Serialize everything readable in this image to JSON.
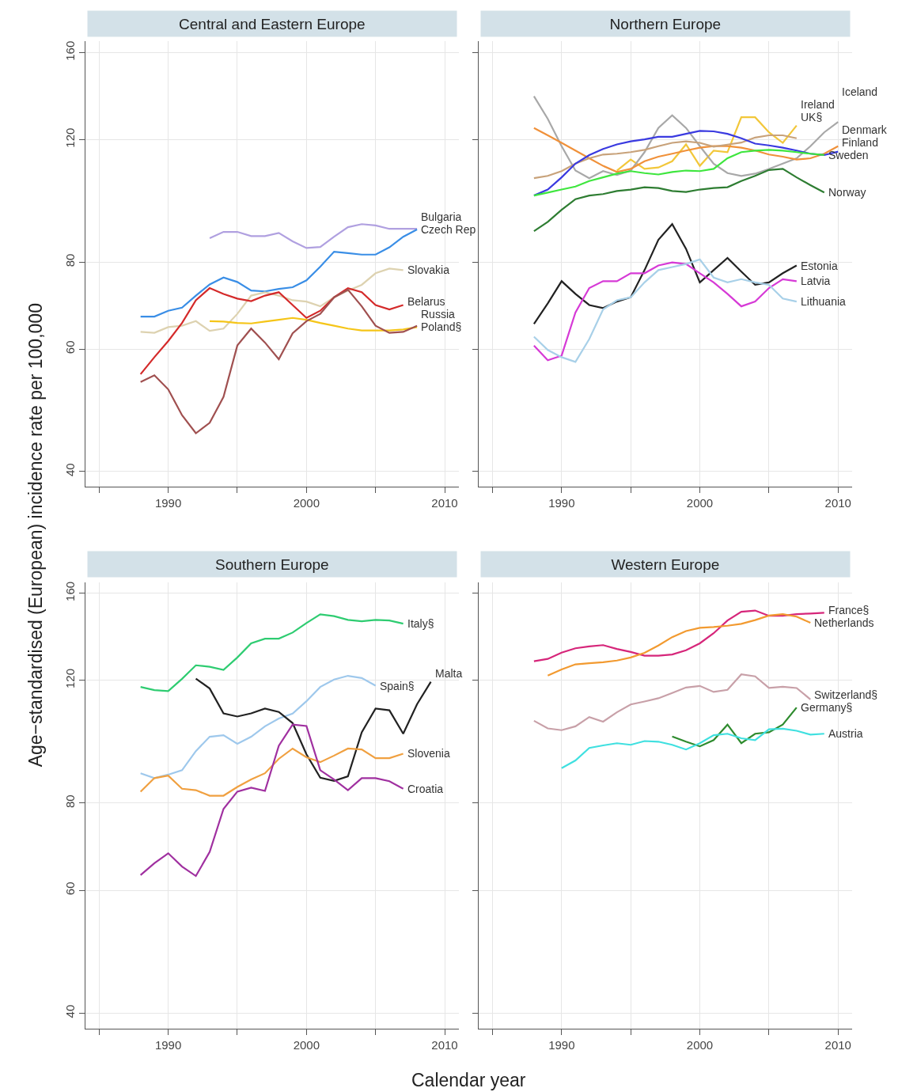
{
  "chart_data": [
    {
      "type": "line",
      "title": "Central and Eastern Europe",
      "ylabel": "Age−standardised (European) incidence rate per 100,000",
      "log": true,
      "grid": true,
      "xlim": [
        1984,
        2011
      ],
      "ylim": [
        38,
        166
      ],
      "xticks": [
        {
          "value": 1985,
          "label": null
        },
        1990,
        {
          "value": 1995,
          "label": null
        },
        2000,
        {
          "value": 2005,
          "label": null
        },
        2010
      ],
      "yticks": [
        40,
        60,
        80,
        120,
        160
      ],
      "series": [
        {
          "name": "Bulgaria",
          "color": "#b0a0e0",
          "x": [
            1993,
            1994,
            1995,
            1996,
            1997,
            1998,
            1999,
            2000,
            2001,
            2002,
            2003,
            2004,
            2005,
            2006,
            2007,
            2008
          ],
          "values": [
            86.6,
            88.4,
            88.4,
            87.2,
            87.2,
            88.1,
            85.7,
            83.8,
            84.1,
            87.0,
            89.8,
            90.7,
            90.3,
            89.3,
            89.3,
            89.3
          ]
        },
        {
          "name": "Czech Rep",
          "color": "#3a8ee6",
          "x": [
            1988,
            1989,
            1990,
            1991,
            1992,
            1993,
            1994,
            1995,
            1996,
            1997,
            1998,
            1999,
            2000,
            2001,
            2002,
            2003,
            2004,
            2005,
            2006,
            2007,
            2008
          ],
          "values": [
            66.8,
            66.8,
            68.1,
            68.8,
            71.6,
            74.3,
            76.0,
            74.9,
            72.8,
            72.6,
            73.2,
            73.6,
            75.3,
            78.8,
            82.8,
            82.4,
            82.0,
            82.0,
            84.0,
            87.0,
            89.1
          ]
        },
        {
          "name": "Slovakia",
          "color": "#ddd2b0",
          "x": [
            1988,
            1989,
            1990,
            1991,
            1992,
            1993,
            1994,
            1995,
            1996,
            1997,
            1998,
            1999,
            2000,
            2001,
            2002,
            2003,
            2004,
            2005,
            2006,
            2007
          ],
          "values": [
            63.5,
            63.3,
            64.5,
            64.8,
            65.8,
            63.7,
            64.2,
            67.4,
            71.6,
            72.4,
            71.6,
            70.5,
            70.2,
            69.1,
            71.2,
            72.8,
            74.2,
            77.1,
            78.3,
            77.9
          ]
        },
        {
          "name": "Belarus",
          "color": "#d42a2a",
          "x": [
            1988,
            1989,
            1990,
            1991,
            1992,
            1993,
            1994,
            1995,
            1996,
            1997,
            1998,
            1999,
            2000,
            2001,
            2002,
            2003,
            2004,
            2005,
            2006,
            2007
          ],
          "values": [
            55.2,
            58.4,
            61.6,
            65.4,
            70.5,
            73.4,
            72.0,
            70.9,
            70.3,
            71.6,
            72.4,
            69.4,
            66.5,
            68.1,
            71.2,
            73.4,
            72.4,
            69.4,
            68.4,
            69.4
          ]
        },
        {
          "name": "Poland§",
          "color": "#f5c518",
          "x": [
            1993,
            1994,
            1995,
            1996,
            1997,
            1998,
            1999,
            2000,
            2001,
            2002,
            2003,
            2004,
            2005,
            2006,
            2007,
            2008
          ],
          "values": [
            65.8,
            65.7,
            65.4,
            65.3,
            65.7,
            66.1,
            66.5,
            66.1,
            65.4,
            64.8,
            64.2,
            63.8,
            63.8,
            63.8,
            64.0,
            64.5
          ]
        },
        {
          "name": "Russia",
          "color": "#a05050",
          "x": [
            1988,
            1989,
            1990,
            1991,
            1992,
            1993,
            1994,
            1995,
            1996,
            1997,
            1998,
            1999,
            2000,
            2001,
            2002,
            2003,
            2004,
            2005,
            2006,
            2007,
            2008
          ],
          "values": [
            53.8,
            55.0,
            52.5,
            48.2,
            45.4,
            47.0,
            51.2,
            60.7,
            64.2,
            61.3,
            58.0,
            63.2,
            65.8,
            67.4,
            71.2,
            73.0,
            69.1,
            64.8,
            63.3,
            63.5,
            64.8
          ]
        }
      ]
    },
    {
      "type": "line",
      "title": "Northern Europe",
      "log": true,
      "grid": true,
      "tick_labels": "x",
      "xlim": [
        1984,
        2011
      ],
      "ylim": [
        38,
        166
      ],
      "xticks": [
        {
          "value": 1985,
          "label": null
        },
        1990,
        {
          "value": 1995,
          "label": null
        },
        2000,
        {
          "value": 2005,
          "label": null
        },
        2010
      ],
      "yticks": [
        40,
        60,
        80,
        120,
        160
      ],
      "series": [
        {
          "name": "Ireland",
          "color": "#f2c73a",
          "x": [
            1994,
            1995,
            1996,
            1997,
            1998,
            1999,
            2000,
            2001,
            2002,
            2003,
            2004,
            2005,
            2006,
            2007
          ],
          "values": [
            108.3,
            112.3,
            108.9,
            109.4,
            111.7,
            118.1,
            110.0,
            115.7,
            115.1,
            129.2,
            129.2,
            122.9,
            118.7,
            125.7
          ]
        },
        {
          "name": "Iceland",
          "color": "#a8a8a8",
          "x": [
            1988,
            1989,
            1990,
            1991,
            1992,
            1993,
            1994,
            1995,
            1996,
            1997,
            1998,
            1999,
            2000,
            2001,
            2002,
            2003,
            2004,
            2005,
            2006,
            2007,
            2008,
            2009,
            2010
          ],
          "values": [
            138.5,
            128.5,
            117.4,
            108.3,
            105.6,
            108.1,
            106.7,
            108.3,
            115.1,
            124.7,
            130.0,
            124.7,
            117.4,
            110.8,
            107.4,
            106.4,
            107.2,
            108.9,
            110.8,
            112.8,
            117.4,
            122.9,
            127.2
          ]
        },
        {
          "name": "Denmark",
          "color": "#f0913a",
          "x": [
            1988,
            1989,
            1990,
            1991,
            1992,
            1993,
            1994,
            1995,
            1996,
            1997,
            1998,
            1999,
            2000,
            2001,
            2002,
            2003,
            2004,
            2005,
            2006,
            2007,
            2008,
            2009,
            2010
          ],
          "values": [
            124.7,
            121.7,
            118.7,
            115.7,
            112.8,
            110.0,
            107.8,
            108.9,
            111.7,
            113.4,
            114.5,
            115.7,
            116.8,
            117.4,
            117.4,
            116.8,
            115.7,
            114.2,
            113.4,
            112.3,
            112.8,
            114.5,
            117.4
          ]
        },
        {
          "name": "UK§",
          "color": "#c8a27a",
          "x": [
            1988,
            1989,
            1990,
            1991,
            1992,
            1993,
            1994,
            1995,
            1996,
            1997,
            1998,
            1999,
            2000,
            2001,
            2002,
            2003,
            2004,
            2005,
            2006,
            2007
          ],
          "values": [
            105.6,
            106.4,
            108.1,
            110.8,
            112.8,
            114.2,
            114.5,
            115.1,
            116.0,
            117.4,
            118.7,
            119.3,
            118.7,
            117.2,
            118.0,
            118.8,
            120.8,
            121.7,
            121.7,
            120.5
          ]
        },
        {
          "name": "Finland",
          "color": "#3a3ae0",
          "x": [
            1988,
            1989,
            1990,
            1991,
            1992,
            1993,
            1994,
            1995,
            1996,
            1997,
            1998,
            1999,
            2000,
            2001,
            2002,
            2003,
            2004,
            2005,
            2006,
            2007,
            2008,
            2009,
            2010
          ],
          "values": [
            99.7,
            101.7,
            105.9,
            110.8,
            114.0,
            116.3,
            118.1,
            119.3,
            120.1,
            121.1,
            121.1,
            122.3,
            123.5,
            123.3,
            122.3,
            120.5,
            118.4,
            117.7,
            116.8,
            115.7,
            114.5,
            114.0,
            115.3
          ]
        },
        {
          "name": "Sweden",
          "color": "#3ee63e",
          "x": [
            1988,
            1989,
            1990,
            1991,
            1992,
            1993,
            1994,
            1995,
            1996,
            1997,
            1998,
            1999,
            2000,
            2001,
            2002,
            2003,
            2004,
            2005,
            2006,
            2007,
            2008,
            2009
          ],
          "values": [
            99.7,
            100.7,
            101.7,
            102.7,
            104.6,
            105.9,
            107.2,
            108.1,
            107.4,
            106.9,
            107.8,
            108.3,
            108.1,
            108.9,
            112.8,
            115.1,
            115.7,
            116.0,
            115.7,
            115.1,
            114.5,
            114.0
          ]
        },
        {
          "name": "Norway",
          "color": "#2e7d32",
          "x": [
            1988,
            1989,
            1990,
            1991,
            1992,
            1993,
            1994,
            1995,
            1996,
            1997,
            1998,
            1999,
            2000,
            2001,
            2002,
            2003,
            2004,
            2005,
            2006,
            2007,
            2008,
            2009
          ],
          "values": [
            88.6,
            91.4,
            95.1,
            98.5,
            99.7,
            100.2,
            101.2,
            101.7,
            102.5,
            102.2,
            101.2,
            100.9,
            101.7,
            102.2,
            102.5,
            104.6,
            106.4,
            108.5,
            108.9,
            105.9,
            103.2,
            100.7
          ]
        },
        {
          "name": "Estonia",
          "color": "#222222",
          "x": [
            1988,
            1989,
            1990,
            1991,
            1992,
            1993,
            1994,
            1995,
            1996,
            1997,
            1998,
            1999,
            2000,
            2001,
            2002,
            2003,
            2004,
            2005,
            2006,
            2007
          ],
          "values": [
            65.2,
            69.8,
            75.1,
            72.0,
            69.4,
            68.7,
            70.2,
            71.2,
            77.9,
            86.1,
            90.7,
            83.6,
            74.8,
            77.9,
            81.1,
            77.5,
            74.2,
            74.8,
            77.1,
            79.1
          ]
        },
        {
          "name": "Latvia",
          "color": "#d63ad6",
          "x": [
            1988,
            1989,
            1990,
            1991,
            1992,
            1993,
            1994,
            1995,
            1996,
            1997,
            1998,
            1999,
            2000,
            2001,
            2002,
            2003,
            2004,
            2005,
            2006,
            2007
          ],
          "values": [
            60.7,
            57.8,
            58.7,
            67.7,
            73.4,
            75.1,
            75.1,
            77.1,
            77.1,
            79.1,
            79.9,
            79.5,
            77.1,
            74.8,
            72.0,
            69.1,
            70.2,
            73.4,
            75.6,
            75.1
          ]
        },
        {
          "name": "Lithuania",
          "color": "#a8d0e8",
          "x": [
            1988,
            1989,
            1990,
            1991,
            1992,
            1993,
            1994,
            1995,
            1996,
            1997,
            1998,
            1999,
            2000,
            2001,
            2002,
            2003,
            2004,
            2005,
            2006,
            2007
          ],
          "values": [
            62.5,
            59.8,
            58.4,
            57.5,
            62.0,
            68.4,
            70.5,
            71.2,
            74.8,
            77.9,
            78.7,
            79.5,
            80.7,
            76.0,
            74.8,
            75.6,
            74.8,
            74.2,
            70.9,
            70.2
          ]
        }
      ]
    },
    {
      "type": "line",
      "title": "Southern Europe",
      "xlabel": "Calendar year",
      "log": true,
      "grid": true,
      "xlim": [
        1984,
        2011
      ],
      "ylim": [
        38,
        166
      ],
      "xticks": [
        {
          "value": 1985,
          "label": null
        },
        1990,
        {
          "value": 1995,
          "label": null
        },
        2000,
        {
          "value": 2005,
          "label": null
        },
        2010
      ],
      "yticks": [
        40,
        60,
        80,
        120,
        160
      ],
      "series": [
        {
          "name": "Italy§",
          "color": "#2ecc71",
          "x": [
            1988,
            1989,
            1990,
            1991,
            1992,
            1993,
            1994,
            1995,
            1996,
            1997,
            1998,
            1999,
            2000,
            2001,
            2002,
            2003,
            2004,
            2005,
            2006,
            2007
          ],
          "values": [
            117.4,
            116.2,
            115.8,
            120.6,
            126.1,
            125.5,
            124.2,
            129.4,
            135.6,
            137.7,
            137.7,
            140.5,
            145.0,
            149.2,
            148.3,
            146.5,
            145.8,
            146.5,
            146.2,
            144.7
          ]
        },
        {
          "name": "Spain§",
          "color": "#9ec8ec",
          "x": [
            1988,
            1989,
            1990,
            1991,
            1992,
            1993,
            1994,
            1995,
            1996,
            1997,
            1998,
            1999,
            2000,
            2001,
            2002,
            2003,
            2004,
            2005
          ],
          "values": [
            88.3,
            86.9,
            87.9,
            89.2,
            95.0,
            99.6,
            100.1,
            97.3,
            99.6,
            103.1,
            105.8,
            107.5,
            112.0,
            117.4,
            120.3,
            121.8,
            120.9,
            117.9
          ]
        },
        {
          "name": "Malta",
          "color": "#222222",
          "x": [
            1992,
            1993,
            1994,
            1995,
            1996,
            1997,
            1998,
            1999,
            2000,
            2001,
            2002,
            2003,
            2004,
            2005,
            2006,
            2007,
            2008,
            2009
          ],
          "values": [
            120.7,
            116.8,
            107.6,
            106.5,
            107.6,
            109.3,
            108.1,
            104.2,
            94.0,
            87.0,
            86.1,
            87.4,
            101.1,
            109.3,
            108.7,
            100.6,
            110.9,
            119.4
          ]
        },
        {
          "name": "Slovenia",
          "color": "#f0a040",
          "x": [
            1988,
            1989,
            1990,
            1991,
            1992,
            1993,
            1994,
            1995,
            1996,
            1997,
            1998,
            1999,
            2000,
            2001,
            2002,
            2003,
            2004,
            2005,
            2006,
            2007
          ],
          "values": [
            83.1,
            86.9,
            87.6,
            83.9,
            83.5,
            82.0,
            82.0,
            84.4,
            86.5,
            88.3,
            92.6,
            95.8,
            93.1,
            91.6,
            93.6,
            95.8,
            95.5,
            92.8,
            92.8,
            94.2
          ]
        },
        {
          "name": "Croatia",
          "color": "#a030a0",
          "x": [
            1988,
            1989,
            1990,
            1991,
            1992,
            1993,
            1994,
            1995,
            1996,
            1997,
            1998,
            1999,
            2000,
            2001,
            2002,
            2003,
            2004,
            2005,
            2006,
            2007
          ],
          "values": [
            63.1,
            65.6,
            67.8,
            64.9,
            62.9,
            68.1,
            78.5,
            83.1,
            84.2,
            83.3,
            96.7,
            103.7,
            103.2,
            89.2,
            86.5,
            83.5,
            86.9,
            86.9,
            86.0,
            83.9
          ]
        }
      ]
    },
    {
      "type": "line",
      "title": "Western Europe",
      "log": true,
      "grid": true,
      "tick_labels": "x",
      "xlim": [
        1984,
        2011
      ],
      "ylim": [
        38,
        166
      ],
      "xticks": [
        {
          "value": 1985,
          "label": null
        },
        1990,
        {
          "value": 1995,
          "label": null
        },
        2000,
        {
          "value": 2005,
          "label": null
        },
        2010
      ],
      "yticks": [
        40,
        60,
        80,
        120,
        160
      ],
      "series": [
        {
          "name": "France§",
          "color": "#d6267a",
          "x": [
            1988,
            1989,
            1990,
            1991,
            1992,
            1993,
            1994,
            1995,
            1996,
            1997,
            1998,
            1999,
            2000,
            2001,
            2002,
            2003,
            2004,
            2005,
            2006,
            2007,
            2008,
            2009
          ],
          "values": [
            127.8,
            128.8,
            131.5,
            133.4,
            134.2,
            134.8,
            133.1,
            131.8,
            130.2,
            130.2,
            130.7,
            132.5,
            135.6,
            140.2,
            146.2,
            150.5,
            151.1,
            148.5,
            148.5,
            149.3,
            149.6,
            150.0
          ]
        },
        {
          "name": "Netherlands",
          "color": "#f29a30",
          "x": [
            1989,
            1990,
            1991,
            1992,
            1993,
            1994,
            1995,
            1996,
            1997,
            1998,
            1999,
            2000,
            2001,
            2002,
            2003,
            2004,
            2005,
            2006,
            2007,
            2008
          ],
          "values": [
            121.9,
            124.4,
            126.5,
            127.0,
            127.4,
            128.1,
            129.4,
            131.4,
            134.6,
            138.4,
            141.2,
            142.7,
            143.1,
            143.7,
            144.6,
            146.4,
            148.6,
            149.3,
            148.1,
            145.1
          ]
        },
        {
          "name": "Switzerland§",
          "color": "#c8a0a8",
          "x": [
            1988,
            1989,
            1990,
            1991,
            1992,
            1993,
            1994,
            1995,
            1996,
            1997,
            1998,
            1999,
            2000,
            2001,
            2002,
            2003,
            2004,
            2005,
            2006,
            2007,
            2008
          ],
          "values": [
            105.0,
            102.4,
            101.8,
            103.1,
            106.3,
            104.7,
            108.0,
            110.8,
            111.9,
            113.1,
            115.1,
            117.2,
            117.8,
            115.5,
            116.3,
            122.4,
            121.6,
            117.0,
            117.5,
            117.0,
            112.7
          ]
        },
        {
          "name": "Germany§",
          "color": "#2e8b2e",
          "x": [
            1998,
            1999,
            2000,
            2001,
            2002,
            2003,
            2004,
            2005,
            2006,
            2007
          ],
          "values": [
            99.7,
            98.0,
            96.5,
            98.5,
            103.7,
            97.5,
            100.6,
            101.1,
            103.7,
            109.7
          ]
        },
        {
          "name": "Austria",
          "color": "#40e0e0",
          "x": [
            1990,
            1991,
            1992,
            1993,
            1994,
            1995,
            1996,
            1997,
            1998,
            1999,
            2000,
            2001,
            2002,
            2003,
            2004,
            2005,
            2006,
            2007,
            2008,
            2009
          ],
          "values": [
            89.8,
            92.1,
            96.0,
            96.8,
            97.5,
            97.0,
            98.2,
            98.0,
            97.0,
            95.5,
            97.5,
            100.1,
            100.6,
            99.1,
            98.5,
            102.1,
            102.3,
            101.6,
            100.3,
            100.6
          ]
        }
      ]
    }
  ]
}
